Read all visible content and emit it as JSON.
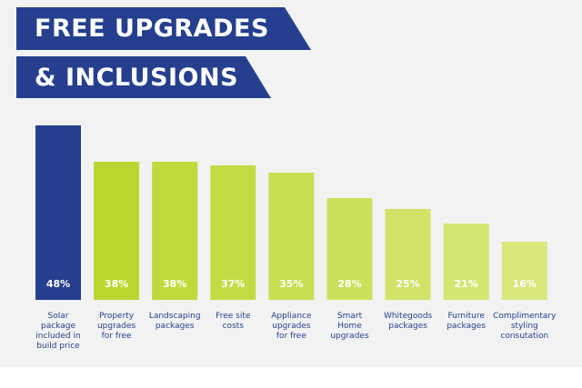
{
  "title": {
    "line1": "FREE UPGRADES",
    "line2": "& INCLUSIONS"
  },
  "colors": {
    "banner": "#253f8e",
    "bar_highlight": "#253f8e",
    "bar_shades": [
      "#bcd631",
      "#c1d93c",
      "#c5db46",
      "#c9de51",
      "#cde05c",
      "#d1e267",
      "#d5e572",
      "#d9e77d"
    ],
    "label": "#253f8e"
  },
  "chart_data": {
    "type": "bar",
    "categories": [
      "Solar package included in build price",
      "Property upgrades for free",
      "Landscaping packages",
      "Free site costs",
      "Appliance upgrades for free",
      "Smart Home upgrades",
      "Whitegoods packages",
      "Furniture packages",
      "Complimentary styling consutation"
    ],
    "category_lines": [
      [
        "Solar",
        "package",
        "included in",
        "build price"
      ],
      [
        "Property",
        "upgrades",
        "for free"
      ],
      [
        "Landscaping",
        "packages"
      ],
      [
        "Free site",
        "costs"
      ],
      [
        "Appliance",
        "upgrades",
        "for free"
      ],
      [
        "Smart",
        "Home",
        "upgrades"
      ],
      [
        "Whitegoods",
        "packages"
      ],
      [
        "Furniture",
        "packages"
      ],
      [
        "Complimentary",
        "styling",
        "consutation"
      ]
    ],
    "values": [
      48,
      38,
      38,
      37,
      35,
      28,
      25,
      21,
      16
    ],
    "value_labels": [
      "48%",
      "38%",
      "38%",
      "37%",
      "35%",
      "28%",
      "25%",
      "21%",
      "16%"
    ],
    "unit": "%",
    "ylim": [
      0,
      100
    ],
    "grid": false,
    "legend": "none"
  }
}
